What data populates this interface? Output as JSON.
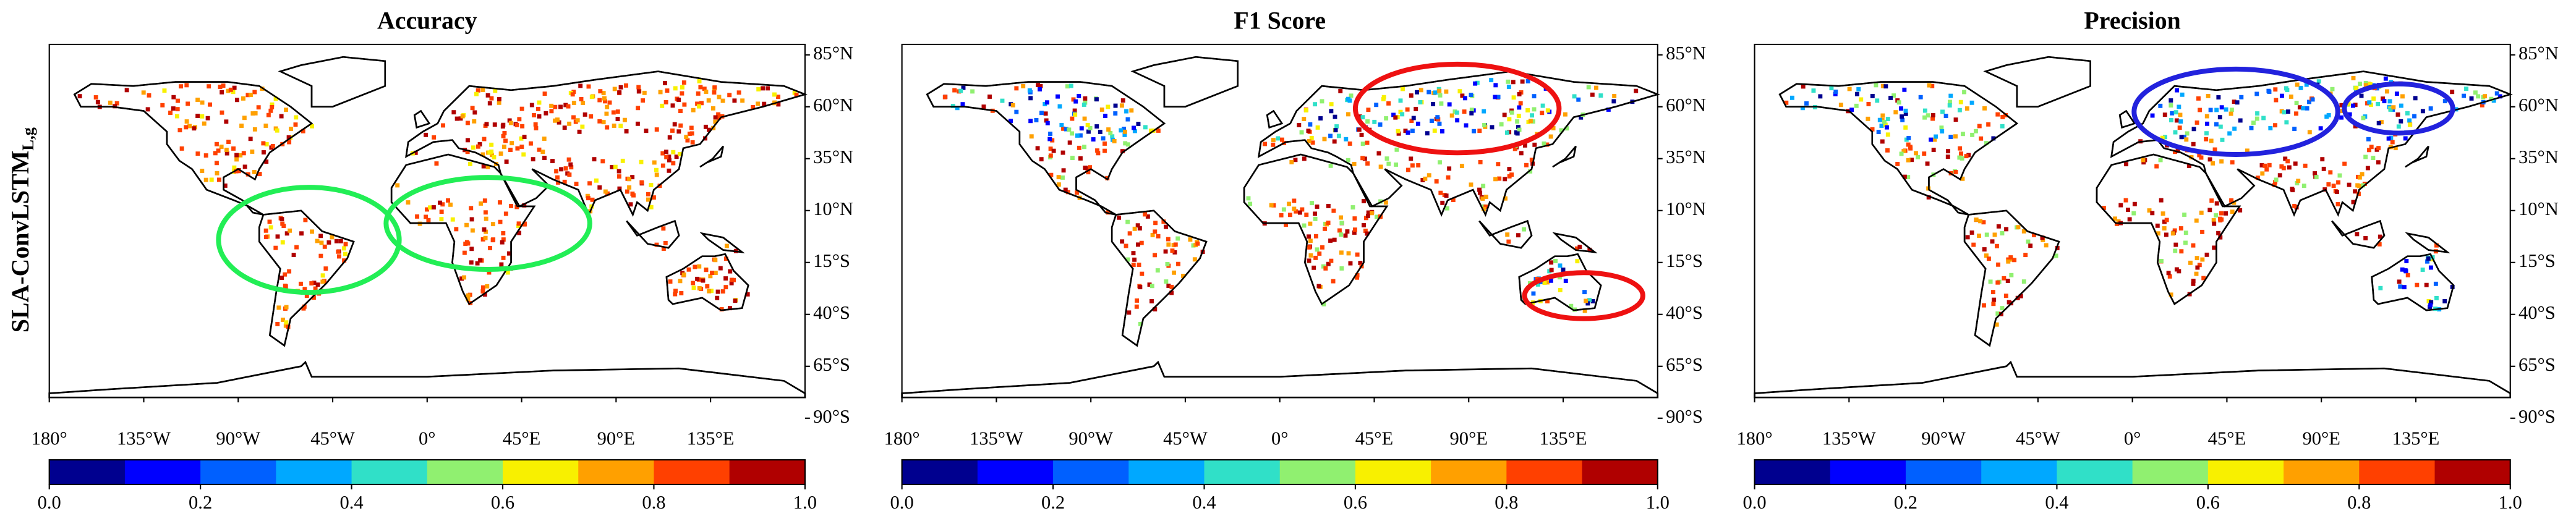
{
  "ylabel": {
    "text": "SLA-ConvLSTM",
    "subscript": "L,g"
  },
  "panels": [
    {
      "title": "Accuracy"
    },
    {
      "title": "F1 Score"
    },
    {
      "title": "Precision"
    }
  ],
  "map": {
    "lon_lim": [
      -180,
      180
    ],
    "lat_lim": [
      -80,
      90
    ],
    "lon_ticks": [
      {
        "value": -180,
        "label": "180°"
      },
      {
        "value": -135,
        "label": "135°W"
      },
      {
        "value": -90,
        "label": "90°W"
      },
      {
        "value": -45,
        "label": "45°W"
      },
      {
        "value": 0,
        "label": "0°"
      },
      {
        "value": 45,
        "label": "45°E"
      },
      {
        "value": 90,
        "label": "90°E"
      },
      {
        "value": 135,
        "label": "135°E"
      }
    ],
    "lat_ticks": [
      {
        "value": 85,
        "label": "85°N"
      },
      {
        "value": 60,
        "label": "60°N"
      },
      {
        "value": 35,
        "label": "35°N"
      },
      {
        "value": 10,
        "label": "10°N"
      },
      {
        "value": -15,
        "label": "15°S"
      },
      {
        "value": -40,
        "label": "40°S"
      },
      {
        "value": -65,
        "label": "65°S"
      },
      {
        "value": -90,
        "label": "90°S"
      }
    ]
  },
  "colorbar": {
    "lim": [
      0,
      1
    ],
    "colors": [
      "#00008f",
      "#0000ff",
      "#0060ff",
      "#00a8ff",
      "#30e0c8",
      "#90f070",
      "#f8f000",
      "#ffa000",
      "#ff4000",
      "#b00000"
    ],
    "ticks": [
      {
        "value": 0,
        "label": "0.0"
      },
      0.2,
      0.4,
      0.6,
      0.8,
      {
        "value": 1,
        "label": "1.0"
      }
    ]
  }
}
